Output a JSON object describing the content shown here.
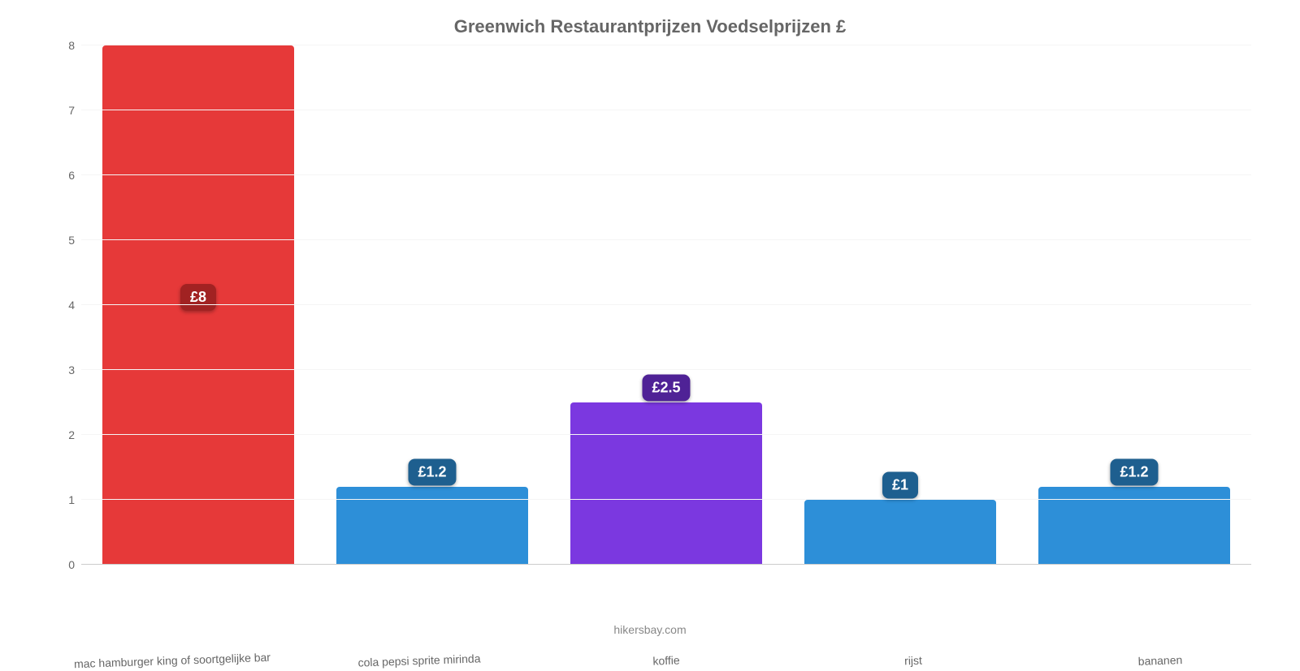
{
  "chart": {
    "type": "bar",
    "title": "Greenwich Restaurantprijzen Voedselprijzen £",
    "title_color": "#666666",
    "title_fontsize": 22,
    "background_color": "#ffffff",
    "grid_color": "#f5f5f5",
    "axis_color": "#cccccc",
    "label_color": "#666666",
    "label_fontsize": 14,
    "ylim": [
      0,
      8
    ],
    "ytick_step": 1,
    "yticks": [
      0,
      1,
      2,
      3,
      4,
      5,
      6,
      7,
      8
    ],
    "bar_width_pct": 82,
    "categories": [
      "mac hamburger king of soortgelijke bar",
      "cola pepsi sprite mirinda",
      "koffie",
      "rijst",
      "bananen"
    ],
    "values": [
      8,
      1.2,
      2.5,
      1,
      1.2
    ],
    "value_labels": [
      "£8",
      "£1.2",
      "£2.5",
      "£1",
      "£1.2"
    ],
    "bar_colors": [
      "#e63939",
      "#2d8fd8",
      "#7b38e0",
      "#2d8fd8",
      "#2d8fd8"
    ],
    "badge_colors": [
      "#a12222",
      "#1e5f8f",
      "#4f2296",
      "#1e5f8f",
      "#1e5f8f"
    ],
    "badge_text_color": "#ffffff",
    "badge_fontsize": 18,
    "credit": "hikersbay.com",
    "credit_color": "#888888"
  }
}
